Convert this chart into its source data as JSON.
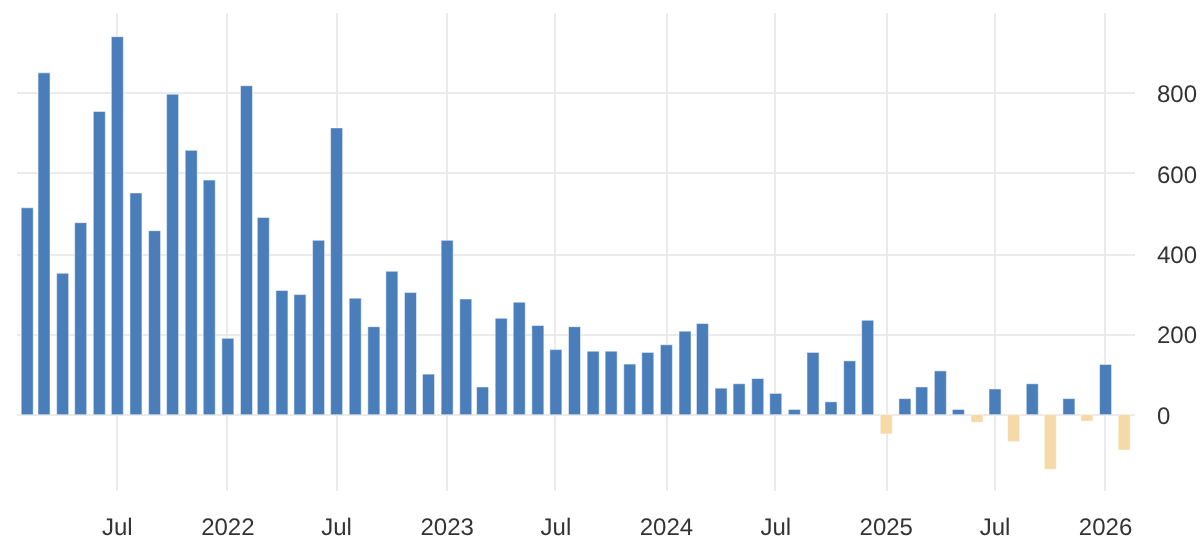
{
  "chart_data": {
    "type": "bar",
    "x": [
      "2021-02",
      "2021-03",
      "2021-04",
      "2021-05",
      "2021-06",
      "2021-07",
      "2021-08",
      "2021-09",
      "2021-10",
      "2021-11",
      "2021-12",
      "2022-01",
      "2022-02",
      "2022-03",
      "2022-04",
      "2022-05",
      "2022-06",
      "2022-07",
      "2022-08",
      "2022-09",
      "2022-10",
      "2022-11",
      "2022-12",
      "2023-01",
      "2023-02",
      "2023-03",
      "2023-04",
      "2023-05",
      "2023-06",
      "2023-07",
      "2023-08",
      "2023-09",
      "2023-10",
      "2023-11",
      "2023-12",
      "2024-01",
      "2024-02",
      "2024-03",
      "2024-04",
      "2024-05",
      "2024-06",
      "2024-07",
      "2024-08",
      "2024-09",
      "2024-10",
      "2024-11",
      "2024-12",
      "2025-01",
      "2025-02",
      "2025-03",
      "2025-04",
      "2025-05",
      "2025-06",
      "2025-07",
      "2025-08",
      "2025-09",
      "2025-10",
      "2025-11",
      "2025-12",
      "2026-01",
      "2026-02"
    ],
    "values": [
      515,
      851,
      352,
      478,
      755,
      941,
      552,
      458,
      798,
      658,
      584,
      190,
      819,
      491,
      309,
      299,
      434,
      714,
      290,
      219,
      357,
      304,
      101,
      434,
      288,
      69,
      240,
      280,
      222,
      162,
      219,
      158,
      158,
      126,
      155,
      174,
      208,
      227,
      66,
      77,
      90,
      53,
      13,
      155,
      32,
      134,
      235,
      -48,
      40,
      69,
      109,
      13,
      -19,
      64,
      -67,
      77,
      -136,
      40,
      -16,
      125,
      -88
    ],
    "colors": [
      "#4a7ebb",
      "#4a7ebb",
      "#4a7ebb",
      "#4a7ebb",
      "#4a7ebb",
      "#4a7ebb",
      "#4a7ebb",
      "#4a7ebb",
      "#4a7ebb",
      "#4a7ebb",
      "#4a7ebb",
      "#4a7ebb",
      "#4a7ebb",
      "#4a7ebb",
      "#4a7ebb",
      "#4a7ebb",
      "#4a7ebb",
      "#4a7ebb",
      "#4a7ebb",
      "#4a7ebb",
      "#4a7ebb",
      "#4a7ebb",
      "#4a7ebb",
      "#4a7ebb",
      "#4a7ebb",
      "#4a7ebb",
      "#4a7ebb",
      "#4a7ebb",
      "#4a7ebb",
      "#4a7ebb",
      "#4a7ebb",
      "#4a7ebb",
      "#4a7ebb",
      "#4a7ebb",
      "#4a7ebb",
      "#4a7ebb",
      "#4a7ebb",
      "#4a7ebb",
      "#4a7ebb",
      "#4a7ebb",
      "#4a7ebb",
      "#4a7ebb",
      "#4a7ebb",
      "#4a7ebb",
      "#4a7ebb",
      "#4a7ebb",
      "#4a7ebb",
      "#f5d9a6",
      "#4a7ebb",
      "#4a7ebb",
      "#4a7ebb",
      "#4a7ebb",
      "#f5d9a6",
      "#4a7ebb",
      "#f5d9a6",
      "#4a7ebb",
      "#f5d9a6",
      "#4a7ebb",
      "#f5d9a6",
      "#4a7ebb",
      "#f5d9a6"
    ],
    "xlim": [
      "2021-01-15",
      "2026-02-19"
    ],
    "xticks": [
      {
        "value": "2021-07",
        "label": "Jul"
      },
      {
        "value": "2022-01",
        "label": "2022"
      },
      {
        "value": "2022-07",
        "label": "Jul"
      },
      {
        "value": "2023-01",
        "label": "2023"
      },
      {
        "value": "2023-07",
        "label": "Jul"
      },
      {
        "value": "2024-01",
        "label": "2024"
      },
      {
        "value": "2024-07",
        "label": "Jul"
      },
      {
        "value": "2025-01",
        "label": "2025"
      },
      {
        "value": "2025-07",
        "label": "Jul"
      },
      {
        "value": "2026-01",
        "label": "2026"
      }
    ],
    "ylim": [
      -190,
      1000
    ],
    "yticks": [
      0,
      200,
      400,
      600,
      800
    ],
    "grid": true
  }
}
